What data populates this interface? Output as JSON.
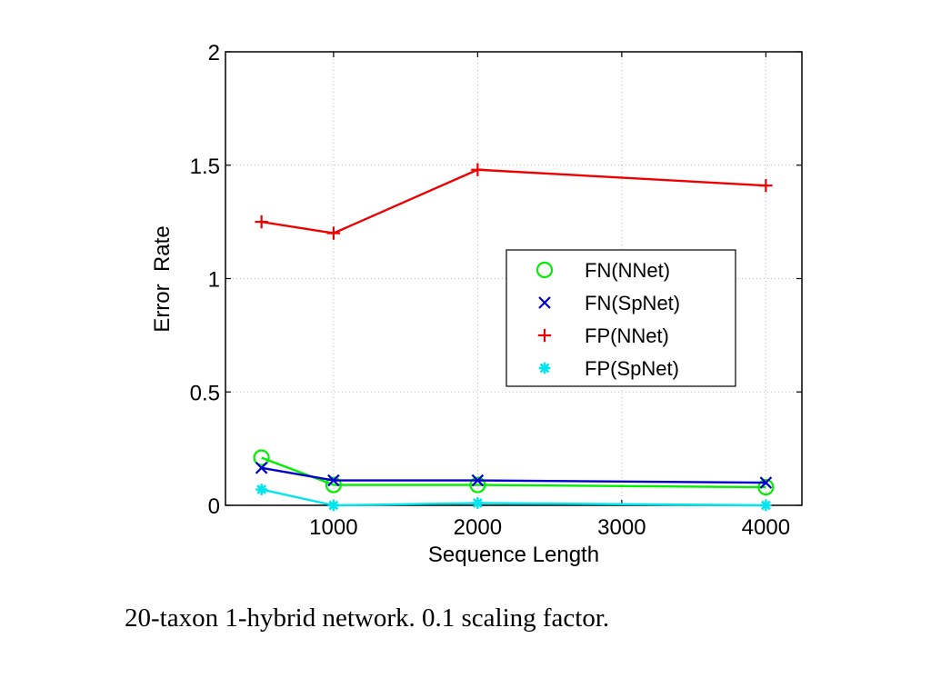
{
  "caption": "20-taxon 1-hybrid network. 0.1 scaling factor.",
  "chart_data": {
    "type": "line",
    "title": "",
    "xlabel": "Sequence Length",
    "ylabel": "Error  Rate",
    "xlim": [
      250,
      4250
    ],
    "ylim": [
      0,
      2
    ],
    "xticks": [
      1000,
      2000,
      3000,
      4000
    ],
    "xtick_labels": [
      "1000",
      "2000",
      "3000",
      "4000"
    ],
    "yticks": [
      0,
      0.5,
      1,
      1.5,
      2
    ],
    "ytick_labels": [
      "0",
      "0.5",
      "1",
      "1.5",
      "2"
    ],
    "grid": true,
    "legend_position": "center-right",
    "x": [
      500,
      1000,
      2000,
      4000
    ],
    "series": [
      {
        "name": "FN(NNet)",
        "marker": "circle",
        "color": "#00ee00",
        "values": [
          0.21,
          0.09,
          0.09,
          0.08
        ]
      },
      {
        "name": "FN(SpNet)",
        "marker": "x",
        "color": "#0000cc",
        "values": [
          0.165,
          0.11,
          0.11,
          0.1
        ]
      },
      {
        "name": "FP(NNet)",
        "marker": "plus",
        "color": "#ee0000",
        "values": [
          1.25,
          1.2,
          1.48,
          1.41
        ]
      },
      {
        "name": "FP(SpNet)",
        "marker": "star",
        "color": "#00e5ee",
        "values": [
          0.07,
          0.0,
          0.01,
          0.0
        ]
      }
    ]
  }
}
